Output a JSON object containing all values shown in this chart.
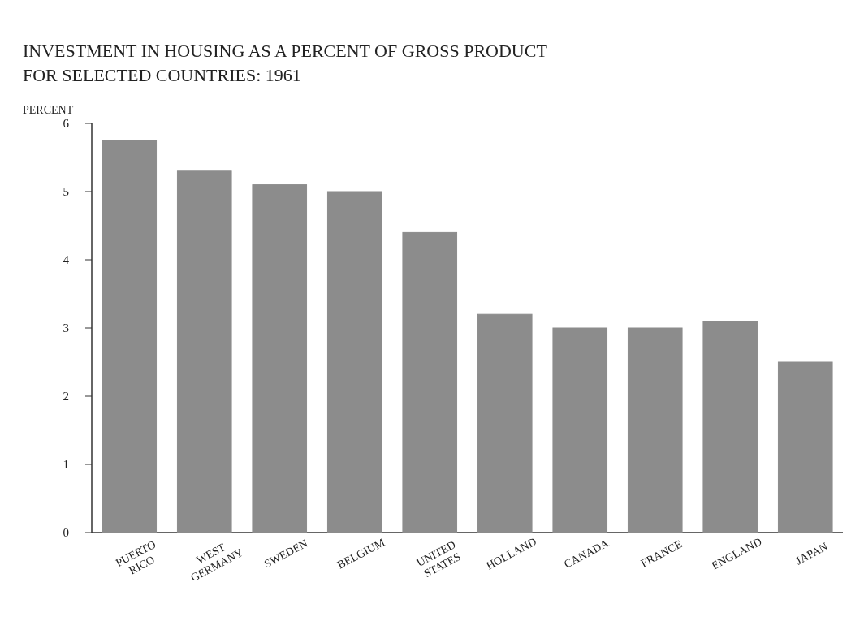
{
  "chart_data": {
    "type": "bar",
    "title": "INVESTMENT IN HOUSING AS A PERCENT OF GROSS PRODUCT\nFOR SELECTED COUNTRIES:  1961",
    "ylabel": "PERCENT",
    "categories": [
      "PUERTO RICO",
      "WEST GERMANY",
      "SWEDEN",
      "BELGIUM",
      "UNITED STATES",
      "HOLLAND",
      "CANADA",
      "FRANCE",
      "ENGLAND",
      "JAPAN"
    ],
    "values": [
      5.75,
      5.3,
      5.1,
      5.0,
      4.4,
      3.2,
      3.0,
      3.0,
      3.1,
      2.5
    ],
    "color": "#8c8c8c",
    "ylim": [
      0,
      6
    ],
    "yticks": [
      0,
      1,
      2,
      3,
      4,
      5,
      6
    ],
    "grid": false
  }
}
